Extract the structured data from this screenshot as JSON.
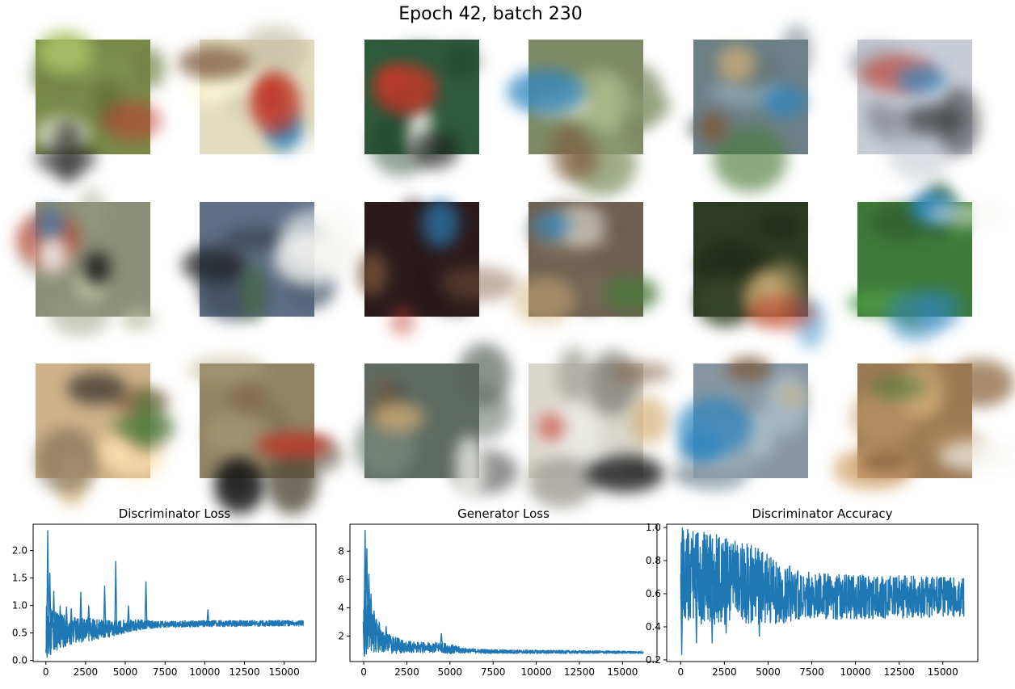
{
  "figure": {
    "title": "Epoch 42, batch 230"
  },
  "sample_grid": [
    [
      "#7a8a4a",
      "#e3dcc0",
      "#2e5a3c",
      "#7e8a66",
      "#6d7f86",
      "#c7ccd6"
    ],
    [
      "#8c8f78",
      "#5e6f86",
      "#2a1a1c",
      "#6e6152",
      "#2e3a22",
      "#3f7a3a"
    ],
    [
      "#cdb28a",
      "#8f8466",
      "#5f6a62",
      "#d8d6cc",
      "#8796a0",
      "#9c7a54"
    ]
  ],
  "chart_data": [
    {
      "type": "line",
      "title": "Discriminator Loss",
      "xlim": [
        -800,
        17000
      ],
      "ylim": [
        -0.02,
        2.48
      ],
      "xticks": [
        0,
        2500,
        5000,
        7500,
        10000,
        12500,
        15000
      ],
      "yticks": [
        0.0,
        0.5,
        1.0,
        1.5,
        2.0
      ],
      "ytick_labels": [
        "0.0",
        "0.5",
        "1.0",
        "1.5",
        "2.0"
      ],
      "color": "#1f77b4",
      "x_max": 16200,
      "trend": [
        [
          0,
          0.55
        ],
        [
          500,
          0.52
        ],
        [
          2000,
          0.55
        ],
        [
          4000,
          0.58
        ],
        [
          6000,
          0.65
        ],
        [
          10000,
          0.67
        ],
        [
          16200,
          0.68
        ]
      ],
      "noise": [
        [
          0,
          0.45
        ],
        [
          1500,
          0.25
        ],
        [
          3000,
          0.2
        ],
        [
          5000,
          0.12
        ],
        [
          7000,
          0.06
        ],
        [
          16200,
          0.05
        ]
      ],
      "spikes": [
        [
          120,
          2.37
        ],
        [
          250,
          1.6
        ],
        [
          500,
          1.27
        ],
        [
          900,
          1.0
        ],
        [
          1300,
          0.98
        ],
        [
          1600,
          0.95
        ],
        [
          2200,
          1.25
        ],
        [
          2700,
          1.0
        ],
        [
          3700,
          1.36
        ],
        [
          4400,
          1.81
        ],
        [
          5200,
          1.0
        ],
        [
          6300,
          1.44
        ],
        [
          10200,
          0.93
        ]
      ],
      "dips": [
        [
          80,
          0.05
        ],
        [
          300,
          0.1
        ],
        [
          700,
          0.18
        ],
        [
          1200,
          0.25
        ]
      ]
    },
    {
      "type": "line",
      "title": "Generator Loss",
      "xlim": [
        -800,
        17000
      ],
      "ylim": [
        0.2,
        9.9
      ],
      "xticks": [
        0,
        2500,
        5000,
        7500,
        10000,
        12500,
        15000
      ],
      "yticks": [
        2,
        4,
        6,
        8
      ],
      "ytick_labels": [
        "2",
        "4",
        "6",
        "8"
      ],
      "color": "#1f77b4",
      "x_max": 16200,
      "trend": [
        [
          0,
          3.0
        ],
        [
          300,
          3.0
        ],
        [
          600,
          2.2
        ],
        [
          1000,
          1.6
        ],
        [
          2000,
          1.3
        ],
        [
          3000,
          1.2
        ],
        [
          4500,
          1.2
        ],
        [
          5500,
          1.0
        ],
        [
          7500,
          0.9
        ],
        [
          16200,
          0.85
        ]
      ],
      "noise": [
        [
          0,
          2.5
        ],
        [
          500,
          1.6
        ],
        [
          1000,
          0.8
        ],
        [
          2500,
          0.4
        ],
        [
          5000,
          0.35
        ],
        [
          6000,
          0.15
        ],
        [
          16200,
          0.08
        ]
      ],
      "spikes": [
        [
          80,
          9.5
        ],
        [
          180,
          8.2
        ],
        [
          300,
          6.4
        ],
        [
          420,
          5.0
        ],
        [
          600,
          3.8
        ],
        [
          900,
          3.0
        ],
        [
          1300,
          2.7
        ],
        [
          4500,
          2.2
        ]
      ],
      "dips": [
        [
          30,
          0.55
        ],
        [
          150,
          0.7
        ]
      ]
    },
    {
      "type": "line",
      "title": "Discriminator Accuracy",
      "xlim": [
        -800,
        17000
      ],
      "ylim": [
        0.19,
        1.02
      ],
      "xticks": [
        0,
        2500,
        5000,
        7500,
        10000,
        12500,
        15000
      ],
      "yticks": [
        0.2,
        0.4,
        0.6,
        0.8,
        1.0
      ],
      "ytick_labels": [
        "0.2",
        "0.4",
        "0.6",
        "0.8",
        "1.0"
      ],
      "color": "#1f77b4",
      "x_max": 16200,
      "trend": [
        [
          0,
          0.72
        ],
        [
          2000,
          0.68
        ],
        [
          4000,
          0.66
        ],
        [
          6000,
          0.6
        ],
        [
          9000,
          0.58
        ],
        [
          16200,
          0.58
        ]
      ],
      "noise": [
        [
          0,
          0.28
        ],
        [
          2000,
          0.28
        ],
        [
          4000,
          0.24
        ],
        [
          5500,
          0.2
        ],
        [
          7000,
          0.14
        ],
        [
          16200,
          0.12
        ]
      ],
      "spikes": [
        [
          100,
          1.0
        ],
        [
          400,
          0.99
        ],
        [
          900,
          0.95
        ],
        [
          1700,
          0.96
        ],
        [
          3000,
          0.9
        ]
      ],
      "dips": [
        [
          60,
          0.23
        ],
        [
          900,
          0.3
        ],
        [
          1800,
          0.3
        ],
        [
          2600,
          0.36
        ],
        [
          4500,
          0.34
        ]
      ]
    }
  ]
}
